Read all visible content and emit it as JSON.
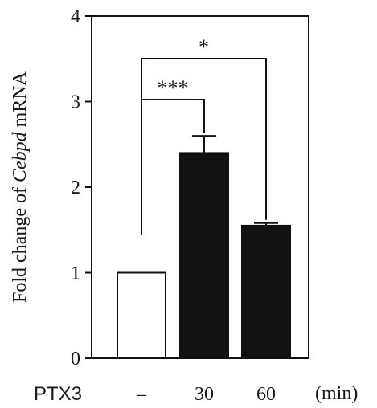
{
  "chart_data": {
    "type": "bar",
    "ylabel_prefix": "Fold change of ",
    "ylabel_gene": "Cebpd",
    "ylabel_suffix": " mRNA",
    "ylim": [
      0,
      4
    ],
    "yticks": [
      "0",
      "1",
      "2",
      "3",
      "4"
    ],
    "treatment_label": "PTX3",
    "unit_label": "(min)",
    "categories": [
      "–",
      "30",
      "60"
    ],
    "values": [
      1.0,
      2.4,
      1.55
    ],
    "errors": [
      0,
      0.2,
      0.03
    ],
    "bar_colors": [
      "#ffffff",
      "#111111",
      "#111111"
    ],
    "significance": [
      {
        "from": 0,
        "to": 1,
        "label": "***"
      },
      {
        "from": 0,
        "to": 2,
        "label": "*"
      }
    ]
  }
}
